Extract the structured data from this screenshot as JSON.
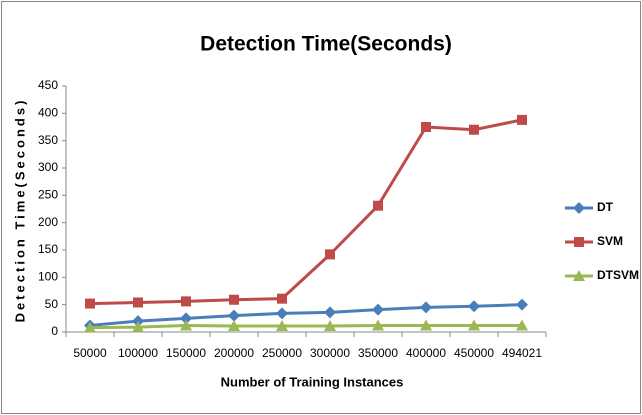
{
  "chart_data": {
    "type": "line",
    "title": "Detection Time(Seconds)",
    "x_label": "Number of Training Instances",
    "y_label": "Detection Time(Seconds)",
    "categories": [
      "50000",
      "100000",
      "150000",
      "200000",
      "250000",
      "300000",
      "350000",
      "400000",
      "450000",
      "494021"
    ],
    "series": [
      {
        "name": "DT",
        "color": "#4a7ebb",
        "marker": "diamond",
        "values": [
          12,
          20,
          25,
          30,
          34,
          36,
          41,
          45,
          47,
          50
        ]
      },
      {
        "name": "SVM",
        "color": "#be4b48",
        "marker": "square",
        "values": [
          52,
          54,
          56,
          59,
          61,
          142,
          231,
          375,
          370,
          388
        ]
      },
      {
        "name": "DTSVM",
        "color": "#98b954",
        "marker": "triangle",
        "values": [
          8,
          9,
          12,
          11,
          11,
          11,
          12,
          12,
          12,
          12
        ]
      }
    ],
    "ylim": [
      0,
      450
    ],
    "yticks": [
      0,
      50,
      100,
      150,
      200,
      250,
      300,
      350,
      400,
      450
    ],
    "grid": false,
    "legend": "right"
  }
}
